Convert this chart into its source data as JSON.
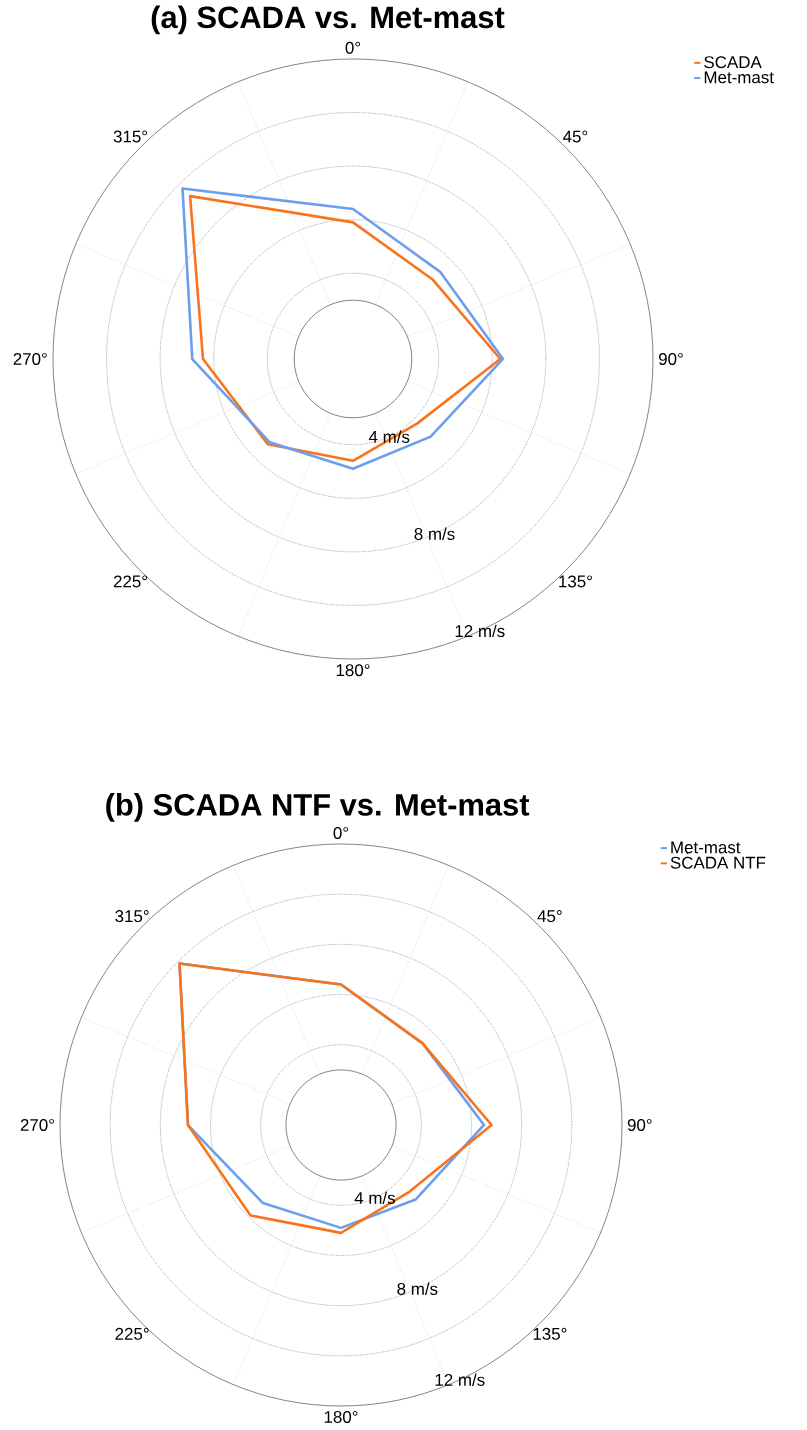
{
  "chart_data": [
    {
      "type": "radar",
      "title": "(a) SCADA vs. Met-mast",
      "categories": [
        "0°",
        "45°",
        "90°",
        "135°",
        "180°",
        "225°",
        "270°",
        "315°"
      ],
      "series": [
        {
          "name": "SCADA",
          "color": "#f8741c",
          "values": [
            5.9,
            5.0,
            6.3,
            4.2,
            4.6,
            5.3,
            6.4,
            9.4
          ]
        },
        {
          "name": "Met-mast",
          "color": "#6d9eee",
          "values": [
            6.4,
            5.4,
            6.4,
            4.9,
            4.9,
            5.2,
            6.8,
            9.8
          ]
        }
      ],
      "ylim": [
        0.8,
        12
      ],
      "yticks": [
        {
          "value": 4,
          "label": "4 m/s"
        },
        {
          "value": 8,
          "label": "8 m/s"
        },
        {
          "value": 12,
          "label": "12 m/s"
        }
      ],
      "grid": true,
      "legend": "top right"
    },
    {
      "type": "radar",
      "title": "(b) SCADA NTF vs. Met-mast",
      "categories": [
        "0°",
        "45°",
        "90°",
        "135°",
        "180°",
        "225°",
        "270°",
        "315°"
      ],
      "series": [
        {
          "name": "Met-mast",
          "color": "#6d9eee",
          "values": [
            6.4,
            5.4,
            6.5,
            5.0,
            4.9,
            5.2,
            6.9,
            9.9
          ]
        },
        {
          "name": "SCADA NTF",
          "color": "#f8741c",
          "values": [
            6.4,
            5.4,
            6.8,
            4.6,
            5.1,
            5.9,
            6.9,
            9.9
          ]
        }
      ],
      "ylim": [
        0.8,
        12
      ],
      "yticks": [
        {
          "value": 4,
          "label": "4 m/s"
        },
        {
          "value": 8,
          "label": "8 m/s"
        },
        {
          "value": 12,
          "label": "12 m/s"
        }
      ],
      "grid": true,
      "legend": "top right"
    }
  ]
}
